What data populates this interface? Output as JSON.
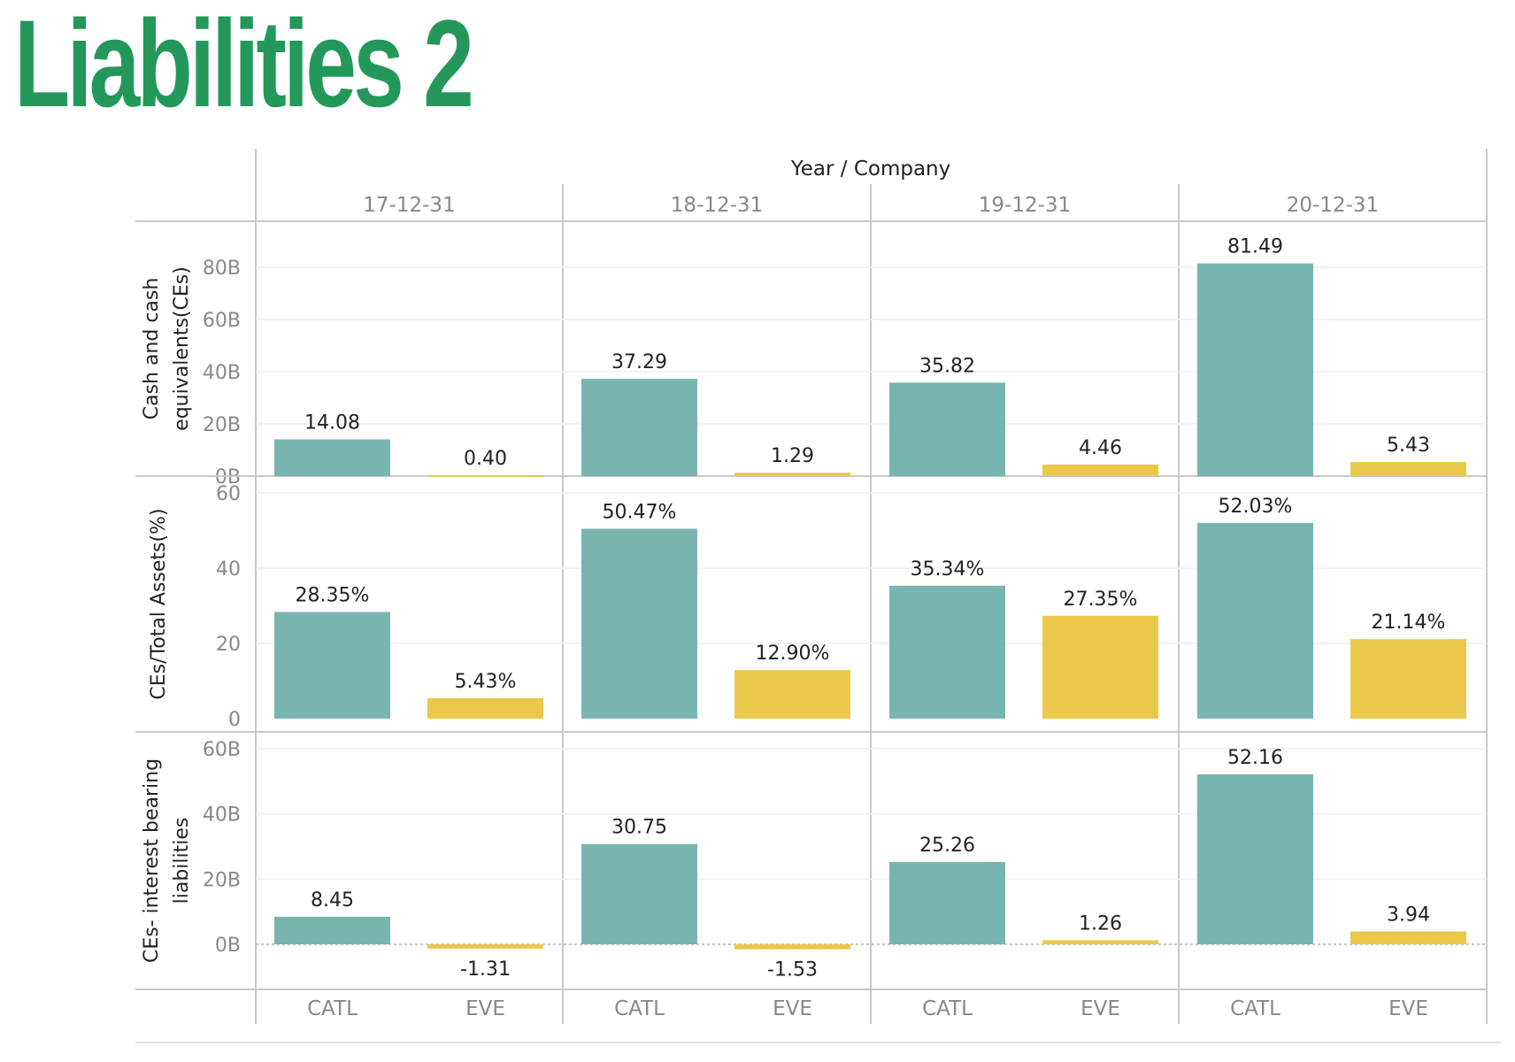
{
  "page": {
    "title": "Liabilities 2"
  },
  "colors": {
    "title": "#23985a",
    "catl": "#79b5b0",
    "eve": "#eac84a",
    "grid_line": "#c8c8c8",
    "zero_line": "#b0b0b0",
    "axis_text": "#888888",
    "label_text": "#222222"
  },
  "chart_data": {
    "type": "bar",
    "header": "Year / Company",
    "years": [
      "17-12-31",
      "18-12-31",
      "19-12-31",
      "20-12-31"
    ],
    "companies": [
      "CATL",
      "EVE"
    ],
    "rows": [
      {
        "label": "Cash and cash equivalents(CEs)",
        "ylim": [
          0,
          80
        ],
        "ticks": [
          0,
          20,
          40,
          60,
          80
        ],
        "tick_labels": [
          "0B",
          "20B",
          "40B",
          "60B",
          "80B"
        ],
        "values": [
          [
            14.08,
            0.4
          ],
          [
            37.29,
            1.29
          ],
          [
            35.82,
            4.46
          ],
          [
            81.49,
            5.43
          ]
        ],
        "value_labels": [
          [
            "14.08",
            "0.40"
          ],
          [
            "37.29",
            "1.29"
          ],
          [
            "35.82",
            "4.46"
          ],
          [
            "81.49",
            "5.43"
          ]
        ]
      },
      {
        "label": "CEs/Total Assets(%)",
        "ylim": [
          0,
          60
        ],
        "ticks": [
          0,
          20,
          40,
          60
        ],
        "tick_labels": [
          "0",
          "20",
          "40",
          "60"
        ],
        "values": [
          [
            28.35,
            5.43
          ],
          [
            50.47,
            12.9
          ],
          [
            35.34,
            27.35
          ],
          [
            52.03,
            21.14
          ]
        ],
        "value_labels": [
          [
            "28.35%",
            "5.43%"
          ],
          [
            "50.47%",
            "12.90%"
          ],
          [
            "35.34%",
            "27.35%"
          ],
          [
            "52.03%",
            "21.14%"
          ]
        ]
      },
      {
        "label": "CEs- interest bearing liabilities",
        "ylim": [
          -10,
          60
        ],
        "ticks": [
          0,
          20,
          40,
          60
        ],
        "tick_labels": [
          "0B",
          "20B",
          "40B",
          "60B"
        ],
        "values": [
          [
            8.45,
            -1.31
          ],
          [
            30.75,
            -1.53
          ],
          [
            25.26,
            1.26
          ],
          [
            52.16,
            3.94
          ]
        ],
        "value_labels": [
          [
            "8.45",
            "-1.31"
          ],
          [
            "30.75",
            "-1.53"
          ],
          [
            "25.26",
            "1.26"
          ],
          [
            "52.16",
            "3.94"
          ]
        ]
      }
    ]
  }
}
